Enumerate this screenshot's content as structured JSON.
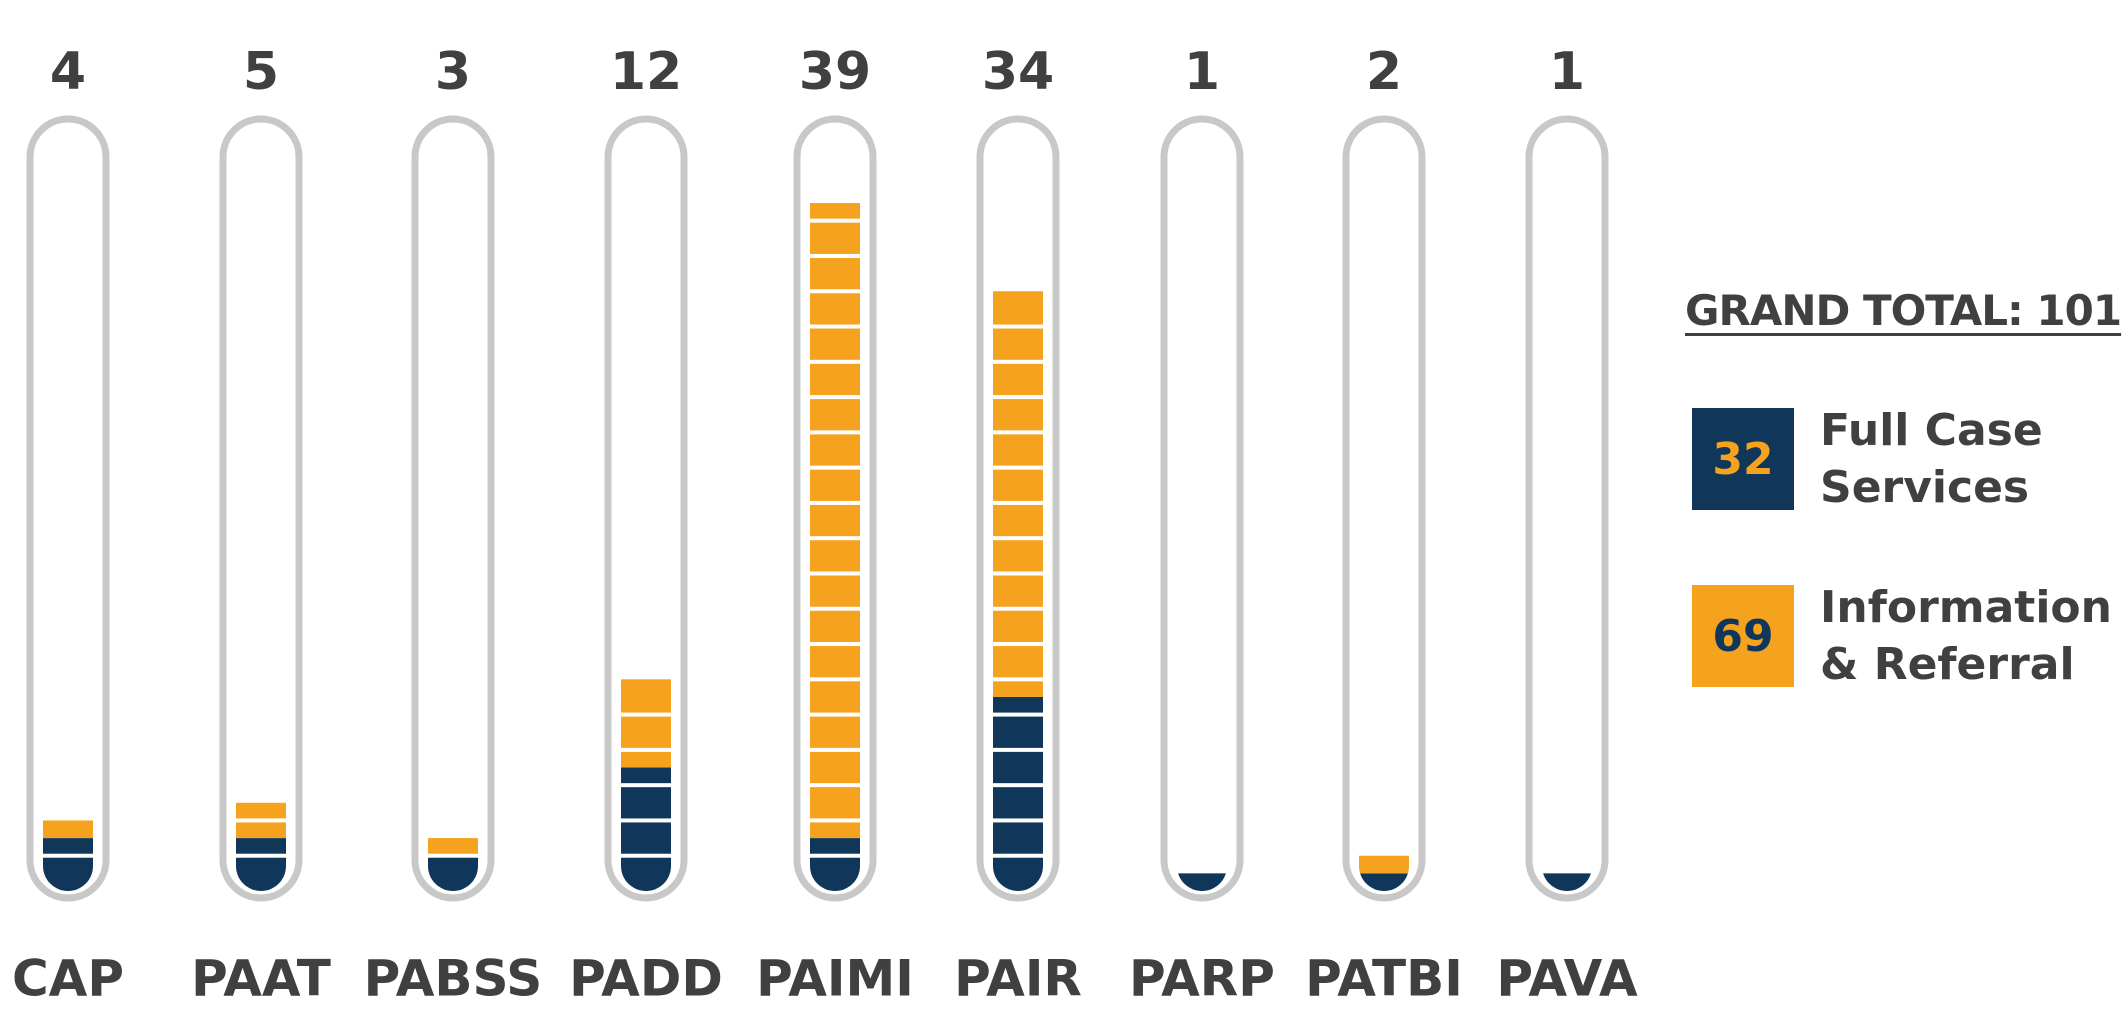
{
  "chart_data": {
    "type": "stacked-tube",
    "categories": [
      "CAP",
      "PAAT",
      "PABSS",
      "PADD",
      "PAIMI",
      "PAIR",
      "PARP",
      "PATBI",
      "PAVA"
    ],
    "totals": [
      4,
      5,
      3,
      12,
      39,
      34,
      1,
      2,
      1
    ],
    "series": [
      {
        "name": "Full Case Services",
        "color": "#10375a",
        "total": 32,
        "total_color": "#f5a21f",
        "values": [
          3,
          3,
          2,
          7,
          3,
          11,
          1,
          1,
          1
        ]
      },
      {
        "name": "Information & Referral",
        "color": "#f5a21f",
        "total": 69,
        "total_color": "#10375a",
        "values": [
          1,
          2,
          1,
          5,
          36,
          23,
          0,
          1,
          0
        ]
      }
    ],
    "legend_title": "GRAND TOTAL: 101"
  }
}
